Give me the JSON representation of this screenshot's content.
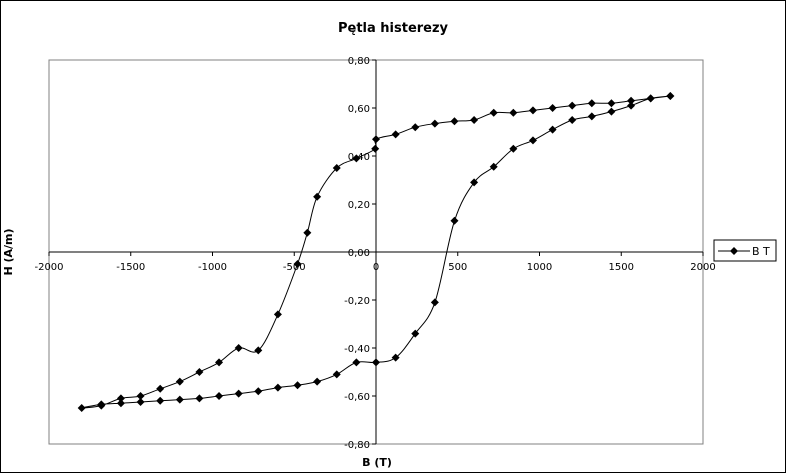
{
  "chart_data": {
    "type": "scatter",
    "title": "Pętla histerezy",
    "xlabel": "B (T)",
    "ylabel": "H (A/m)",
    "xlim": [
      -2000,
      2000
    ],
    "ylim": [
      -0.8,
      0.8
    ],
    "x_ticks": [
      "-2000",
      "-1500",
      "-1000",
      "-500",
      "0",
      "500",
      "1000",
      "1500",
      "2000"
    ],
    "y_ticks": [
      "-0,80",
      "-0,60",
      "-0,40",
      "-0,20",
      "0,00",
      "0,20",
      "0,40",
      "0,60",
      "0,80"
    ],
    "x_tick_values": [
      -2000,
      -1500,
      -1000,
      -500,
      0,
      500,
      1000,
      1500,
      2000
    ],
    "y_tick_values": [
      -0.8,
      -0.6,
      -0.4,
      -0.2,
      0,
      0.2,
      0.4,
      0.6,
      0.8
    ],
    "legend_position": "right",
    "grid": false,
    "series": [
      {
        "name": "B T",
        "color": "#000000",
        "marker": "diamond",
        "x": [
          1800,
          1680,
          1560,
          1440,
          1320,
          1200,
          1080,
          960,
          840,
          720,
          600,
          480,
          360,
          240,
          120,
          0,
          -5,
          -120,
          -240,
          -360,
          -420,
          -480,
          -600,
          -720,
          -840,
          -960,
          -1080,
          -1200,
          -1320,
          -1440,
          -1560,
          -1680,
          -1800,
          -1680,
          -1560,
          -1440,
          -1320,
          -1200,
          -1080,
          -960,
          -840,
          -720,
          -600,
          -480,
          -360,
          -240,
          -120,
          0,
          120,
          240,
          360,
          480,
          600,
          720,
          840,
          960,
          1080,
          1200,
          1320,
          1440,
          1560,
          1680,
          1800
        ],
        "y": [
          0.65,
          0.64,
          0.63,
          0.62,
          0.62,
          0.61,
          0.6,
          0.59,
          0.58,
          0.58,
          0.55,
          0.545,
          0.535,
          0.52,
          0.49,
          0.47,
          0.43,
          0.39,
          0.35,
          0.23,
          0.08,
          -0.05,
          -0.26,
          -0.41,
          -0.4,
          -0.46,
          -0.5,
          -0.54,
          -0.57,
          -0.6,
          -0.61,
          -0.64,
          -0.65,
          -0.635,
          -0.63,
          -0.625,
          -0.62,
          -0.615,
          -0.61,
          -0.6,
          -0.59,
          -0.58,
          -0.565,
          -0.555,
          -0.54,
          -0.51,
          -0.46,
          -0.46,
          -0.44,
          -0.34,
          -0.21,
          0.13,
          0.29,
          0.355,
          0.43,
          0.465,
          0.51,
          0.55,
          0.565,
          0.585,
          0.61,
          0.64,
          0.65
        ]
      }
    ]
  }
}
